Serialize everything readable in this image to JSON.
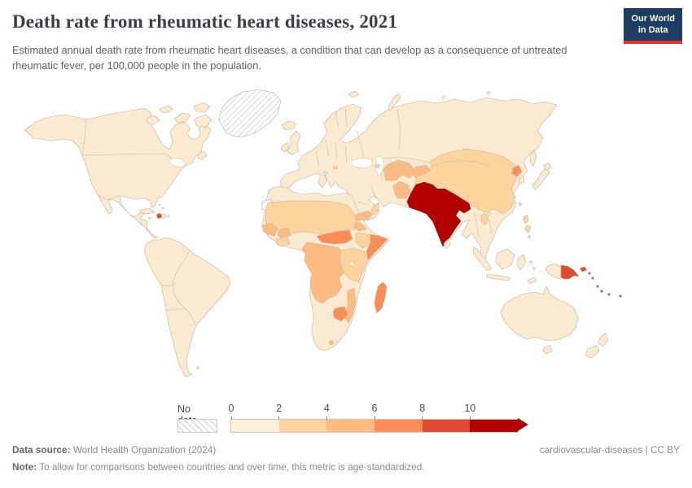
{
  "header": {
    "title": "Death rate from rheumatic heart diseases, 2021",
    "subtitle": "Estimated annual death rate from rheumatic heart diseases, a condition that can develop as a consequence of untreated rheumatic fever, per 100,000 people in the population.",
    "logo": {
      "line1": "Our World",
      "line2": "in Data",
      "bg": "#1d3d63",
      "accent": "#e0362c"
    }
  },
  "legend": {
    "no_data_label": "No data",
    "bands": [
      {
        "tick": "0",
        "color": "#fef0d9"
      },
      {
        "tick": "2",
        "color": "#fdd49e"
      },
      {
        "tick": "4",
        "color": "#fdbb84"
      },
      {
        "tick": "6",
        "color": "#fc8d59"
      },
      {
        "tick": "8",
        "color": "#e34a33"
      },
      {
        "tick": "10",
        "color": "#b30000"
      }
    ],
    "arrow_color": "#b30000"
  },
  "footer": {
    "source_label": "Data source:",
    "source_text": " World Health Organization (2024)",
    "license": "cardiovascular-diseases | CC BY",
    "note_label": "Note:",
    "note_text": " To allow for comparisons between countries and over time, this metric is age-standardized."
  },
  "map": {
    "ocean": "#ffffff",
    "stroke": "#c3b29c",
    "regions": [
      {
        "id": "north-america",
        "fill": "#fcead0"
      },
      {
        "id": "arctic-islands",
        "fill": "#fcead0"
      },
      {
        "id": "greenland",
        "fill": "hatch"
      },
      {
        "id": "iceland",
        "fill": "#fcead0"
      },
      {
        "id": "south-america",
        "fill": "#fcead0"
      },
      {
        "id": "caribbean-cream",
        "fill": "#fcead0"
      },
      {
        "id": "haiti",
        "fill": "#e34a33"
      },
      {
        "id": "eurasia",
        "fill": "#fcead0"
      },
      {
        "id": "uk-ireland",
        "fill": "#fcead0"
      },
      {
        "id": "africa",
        "fill": "#fcead0"
      },
      {
        "id": "western-sahara",
        "fill": "hatch"
      },
      {
        "id": "sahel-sudan",
        "fill": "#fdd49e"
      },
      {
        "id": "senegal-guinea",
        "fill": "#fdbb84"
      },
      {
        "id": "burkina",
        "fill": "#fdbb84"
      },
      {
        "id": "ivory-coast",
        "fill": "#fdd49e"
      },
      {
        "id": "car-south-sudan",
        "fill": "#fc8d59"
      },
      {
        "id": "eritrea",
        "fill": "#fdbb84"
      },
      {
        "id": "ethiopia",
        "fill": "#fdd49e"
      },
      {
        "id": "somalia",
        "fill": "#fc8d59"
      },
      {
        "id": "central-africa",
        "fill": "#fdbb84"
      },
      {
        "id": "east-africa",
        "fill": "#fdd49e"
      },
      {
        "id": "mozambique",
        "fill": "#fdbb84"
      },
      {
        "id": "zimbabwe",
        "fill": "#fc8d59"
      },
      {
        "id": "lesotho",
        "fill": "#fdbb84"
      },
      {
        "id": "madagascar",
        "fill": "#fc8d59"
      },
      {
        "id": "yemen",
        "fill": "#fdbb84"
      },
      {
        "id": "oman",
        "fill": "#fdd49e"
      },
      {
        "id": "balkan-patch",
        "fill": "#fdd49e"
      },
      {
        "id": "caucasus-patch",
        "fill": "#fdd49e"
      },
      {
        "id": "central-asia",
        "fill": "#fdbb84"
      },
      {
        "id": "kyrgyz-tajik",
        "fill": "#fdbb84"
      },
      {
        "id": "afghanistan",
        "fill": "#fdbb84"
      },
      {
        "id": "china-mongolia",
        "fill": "#fdd49e"
      },
      {
        "id": "north-korea",
        "fill": "#fc8d59"
      },
      {
        "id": "south-korea",
        "fill": "#fcead0"
      },
      {
        "id": "japan",
        "fill": "#fcead0"
      },
      {
        "id": "sakhalin",
        "fill": "#fcead0"
      },
      {
        "id": "taiwan",
        "fill": "#fdd49e"
      },
      {
        "id": "hainan",
        "fill": "#fcead0"
      },
      {
        "id": "laos",
        "fill": "#fdd49e"
      },
      {
        "id": "india-block",
        "fill": "#b30000"
      },
      {
        "id": "sri-lanka",
        "fill": "#fcead0"
      },
      {
        "id": "philippines",
        "fill": "#fdd49e"
      },
      {
        "id": "indonesia",
        "fill": "#fcead0"
      },
      {
        "id": "new-guinea-west",
        "fill": "#fcead0"
      },
      {
        "id": "papua-new-guinea",
        "fill": "#e34a33"
      },
      {
        "id": "pacific-islands",
        "fill": "#e34a33"
      },
      {
        "id": "australia",
        "fill": "#fcead0"
      },
      {
        "id": "new-zealand",
        "fill": "#fcead0"
      }
    ]
  },
  "chart_data": {
    "type": "choropleth",
    "title": "Death rate from rheumatic heart diseases, 2021",
    "unit": "deaths per 100,000 people (age-standardized)",
    "year": 2021,
    "legend_bins": [
      "0-2",
      "2-4",
      "4-6",
      "6-8",
      "8-10",
      "10+",
      "No data"
    ],
    "bin_colors": [
      "#fef0d9",
      "#fdd49e",
      "#fdbb84",
      "#fc8d59",
      "#e34a33",
      "#b30000"
    ],
    "source": "World Health Organization (2024)",
    "regions": [
      {
        "region": "India",
        "value_bin": "10+"
      },
      {
        "region": "Pakistan",
        "value_bin": "10+"
      },
      {
        "region": "Bangladesh",
        "value_bin": "10+"
      },
      {
        "region": "Nepal",
        "value_bin": "10+"
      },
      {
        "region": "Papua New Guinea",
        "value_bin": "8-10"
      },
      {
        "region": "Solomon Islands",
        "value_bin": "8-10"
      },
      {
        "region": "Vanuatu",
        "value_bin": "8-10"
      },
      {
        "region": "Fiji",
        "value_bin": "8-10"
      },
      {
        "region": "Haiti",
        "value_bin": "8-10"
      },
      {
        "region": "Madagascar",
        "value_bin": "6-8"
      },
      {
        "region": "Somalia",
        "value_bin": "6-8"
      },
      {
        "region": "Zimbabwe",
        "value_bin": "6-8"
      },
      {
        "region": "Central African Republic",
        "value_bin": "6-8"
      },
      {
        "region": "North Korea",
        "value_bin": "6-8"
      },
      {
        "region": "Democratic Republic of Congo",
        "value_bin": "4-6"
      },
      {
        "region": "Angola",
        "value_bin": "4-6"
      },
      {
        "region": "Zambia",
        "value_bin": "4-6"
      },
      {
        "region": "Mozambique",
        "value_bin": "4-6"
      },
      {
        "region": "Cameroon",
        "value_bin": "4-6"
      },
      {
        "region": "Senegal",
        "value_bin": "4-6"
      },
      {
        "region": "Guinea",
        "value_bin": "4-6"
      },
      {
        "region": "Eritrea",
        "value_bin": "4-6"
      },
      {
        "region": "Lesotho",
        "value_bin": "4-6"
      },
      {
        "region": "Yemen",
        "value_bin": "4-6"
      },
      {
        "region": "Afghanistan",
        "value_bin": "4-6"
      },
      {
        "region": "Uzbekistan",
        "value_bin": "4-6"
      },
      {
        "region": "Turkmenistan",
        "value_bin": "4-6"
      },
      {
        "region": "Kyrgyzstan",
        "value_bin": "4-6"
      },
      {
        "region": "Tajikistan",
        "value_bin": "4-6"
      },
      {
        "region": "China",
        "value_bin": "2-4"
      },
      {
        "region": "Mongolia",
        "value_bin": "2-4"
      },
      {
        "region": "Ethiopia",
        "value_bin": "2-4"
      },
      {
        "region": "Mali",
        "value_bin": "2-4"
      },
      {
        "region": "Niger",
        "value_bin": "2-4"
      },
      {
        "region": "Chad",
        "value_bin": "2-4"
      },
      {
        "region": "Sudan",
        "value_bin": "2-4"
      },
      {
        "region": "Kenya",
        "value_bin": "2-4"
      },
      {
        "region": "Tanzania",
        "value_bin": "2-4"
      },
      {
        "region": "Philippines",
        "value_bin": "2-4"
      },
      {
        "region": "Laos",
        "value_bin": "2-4"
      },
      {
        "region": "Oman",
        "value_bin": "2-4"
      },
      {
        "region": "United States",
        "value_bin": "0-2"
      },
      {
        "region": "Canada",
        "value_bin": "0-2"
      },
      {
        "region": "Mexico",
        "value_bin": "0-2"
      },
      {
        "region": "Brazil",
        "value_bin": "0-2"
      },
      {
        "region": "Argentina",
        "value_bin": "0-2"
      },
      {
        "region": "Europe (most countries)",
        "value_bin": "0-2"
      },
      {
        "region": "Russia",
        "value_bin": "0-2"
      },
      {
        "region": "Kazakhstan",
        "value_bin": "0-2"
      },
      {
        "region": "Saudi Arabia",
        "value_bin": "0-2"
      },
      {
        "region": "Turkey",
        "value_bin": "0-2"
      },
      {
        "region": "Iran",
        "value_bin": "0-2"
      },
      {
        "region": "Japan",
        "value_bin": "0-2"
      },
      {
        "region": "Indonesia",
        "value_bin": "0-2"
      },
      {
        "region": "Australia",
        "value_bin": "0-2"
      },
      {
        "region": "New Zealand",
        "value_bin": "0-2"
      },
      {
        "region": "Greenland",
        "value_bin": "No data"
      },
      {
        "region": "Western Sahara",
        "value_bin": "No data"
      }
    ]
  }
}
